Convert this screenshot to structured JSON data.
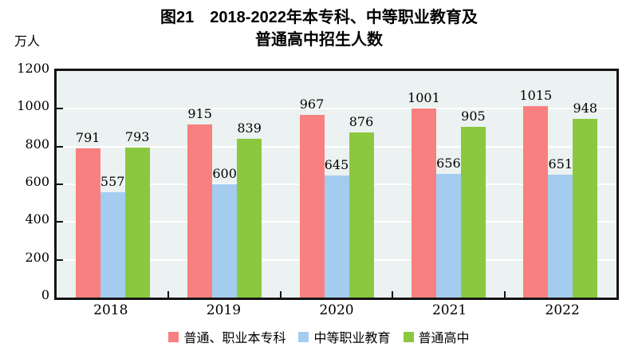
{
  "chart": {
    "title_line1": "图21　2018-2022年本专科、中等职业教育及",
    "title_line2": "普通高中招生人数",
    "y_unit": "万人"
  },
  "chart_data": {
    "type": "bar",
    "title": "图21　2018-2022年本专科、中等职业教育及普通高中招生人数",
    "xlabel": "",
    "ylabel": "万人",
    "categories": [
      "2018",
      "2019",
      "2020",
      "2021",
      "2022"
    ],
    "series": [
      {
        "name": "普通、职业本专科",
        "color": "#F98080",
        "values": [
          791,
          915,
          967,
          1001,
          1015
        ]
      },
      {
        "name": "中等职业教育",
        "color": "#A4CCEF",
        "values": [
          557,
          600,
          645,
          656,
          651
        ]
      },
      {
        "name": "普通高中",
        "color": "#8CC740",
        "values": [
          793,
          839,
          876,
          905,
          948
        ]
      }
    ],
    "ylim": [
      0,
      1200
    ],
    "yticks": [
      0,
      200,
      400,
      600,
      800,
      1000,
      1200
    ],
    "grid": true,
    "gridline_color": "#FFFFFF",
    "plot_background": "#EBF2F1",
    "axis_color": "#141414",
    "legend_position": "bottom"
  }
}
